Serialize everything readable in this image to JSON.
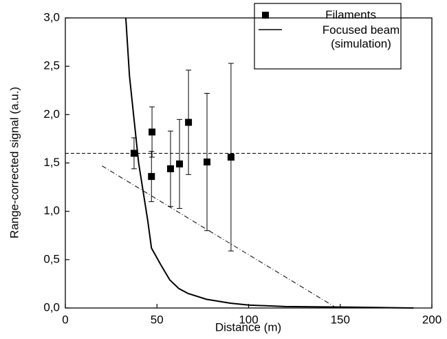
{
  "chart_data": {
    "type": "scatter",
    "x_label": "Distance (m)",
    "y_label": "Range-corrected signal (a.u.)",
    "xlim": [
      0,
      200
    ],
    "ylim": [
      0,
      3.0
    ],
    "xticks": [
      0,
      50,
      100,
      150,
      200
    ],
    "yticks": [
      {
        "value": 0,
        "label": "0,0"
      },
      {
        "value": 0.5,
        "label": "0,5"
      },
      {
        "value": 1.0,
        "label": "1,0"
      },
      {
        "value": 1.5,
        "label": "1,5"
      },
      {
        "value": 2.0,
        "label": "2,0"
      },
      {
        "value": 2.5,
        "label": "2,5"
      },
      {
        "value": 3.0,
        "label": "3,0"
      }
    ],
    "legend": "upper right",
    "series": [
      {
        "name": "Filaments",
        "color": "#000000",
        "marker": "square",
        "x": [
          37.5,
          47.3,
          47.0,
          57.4,
          62.3,
          67.2,
          77.3,
          90.4
        ],
        "values": [
          1.6,
          1.82,
          1.36,
          1.44,
          1.49,
          1.92,
          1.51,
          1.56
        ],
        "errors": [
          0.16,
          0.26,
          0.26,
          0.39,
          0.46,
          0.54,
          0.71,
          0.97
        ]
      },
      {
        "name": "Focused beam (simulation)",
        "color": "#000000",
        "marker": "line",
        "x": [
          33,
          35,
          40,
          45,
          47,
          52,
          57,
          62,
          67,
          77,
          90,
          100,
          120,
          150,
          190
        ],
        "values": [
          3.0,
          2.4,
          1.5,
          0.9,
          0.62,
          0.45,
          0.29,
          0.2,
          0.15,
          0.09,
          0.05,
          0.03,
          0.015,
          0.01,
          0.0
        ]
      }
    ],
    "reference_y": 1.6,
    "trend_line": {
      "x": [
        20,
        148
      ],
      "y": [
        1.47,
        0.0
      ]
    }
  }
}
